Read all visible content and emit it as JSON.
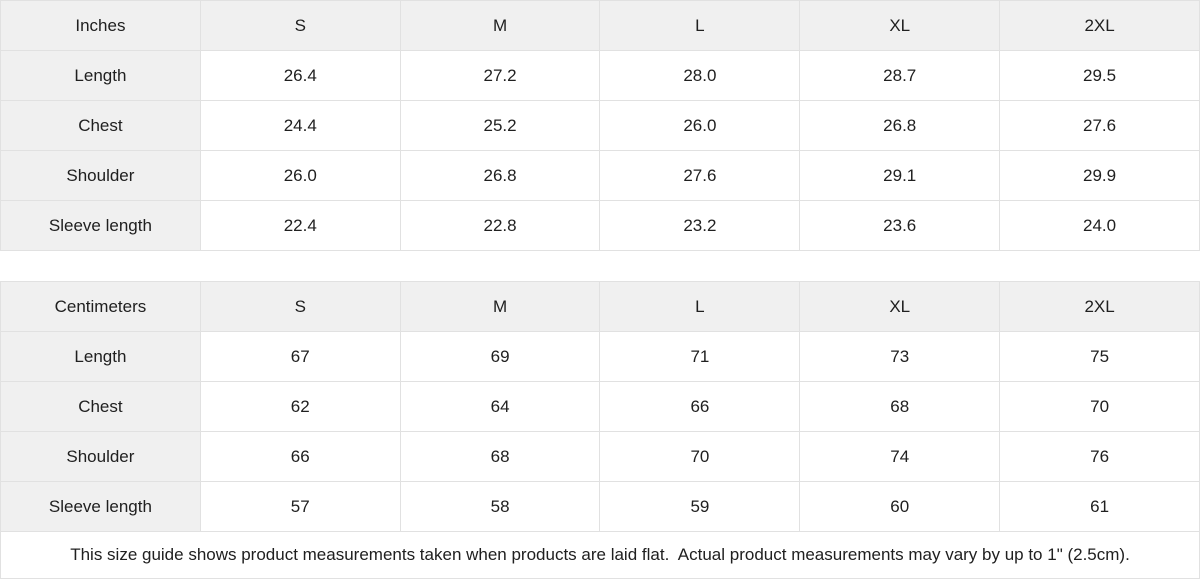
{
  "colors": {
    "header_fill": "#f0f0f0",
    "label_column_fill": "#f0f0f0",
    "cell_fill": "#ffffff",
    "border": "#e1e1e1",
    "text": "#202020"
  },
  "tables": [
    {
      "unit_label": "Inches",
      "sizes": [
        "S",
        "M",
        "L",
        "XL",
        "2XL"
      ],
      "rows": [
        {
          "label": "Length",
          "values": [
            "26.4",
            "27.2",
            "28.0",
            "28.7",
            "29.5"
          ]
        },
        {
          "label": "Chest",
          "values": [
            "24.4",
            "25.2",
            "26.0",
            "26.8",
            "27.6"
          ]
        },
        {
          "label": "Shoulder",
          "values": [
            "26.0",
            "26.8",
            "27.6",
            "29.1",
            "29.9"
          ]
        },
        {
          "label": "Sleeve length",
          "values": [
            "22.4",
            "22.8",
            "23.2",
            "23.6",
            "24.0"
          ]
        }
      ]
    },
    {
      "unit_label": "Centimeters",
      "sizes": [
        "S",
        "M",
        "L",
        "XL",
        "2XL"
      ],
      "rows": [
        {
          "label": "Length",
          "values": [
            "67",
            "69",
            "71",
            "73",
            "75"
          ]
        },
        {
          "label": "Chest",
          "values": [
            "62",
            "64",
            "66",
            "68",
            "70"
          ]
        },
        {
          "label": "Shoulder",
          "values": [
            "66",
            "68",
            "70",
            "74",
            "76"
          ]
        },
        {
          "label": "Sleeve length",
          "values": [
            "57",
            "58",
            "59",
            "60",
            "61"
          ]
        }
      ]
    }
  ],
  "footer_note": "This size guide shows product measurements taken when products are laid flat.  Actual product measurements may vary by up to 1\" (2.5cm)."
}
